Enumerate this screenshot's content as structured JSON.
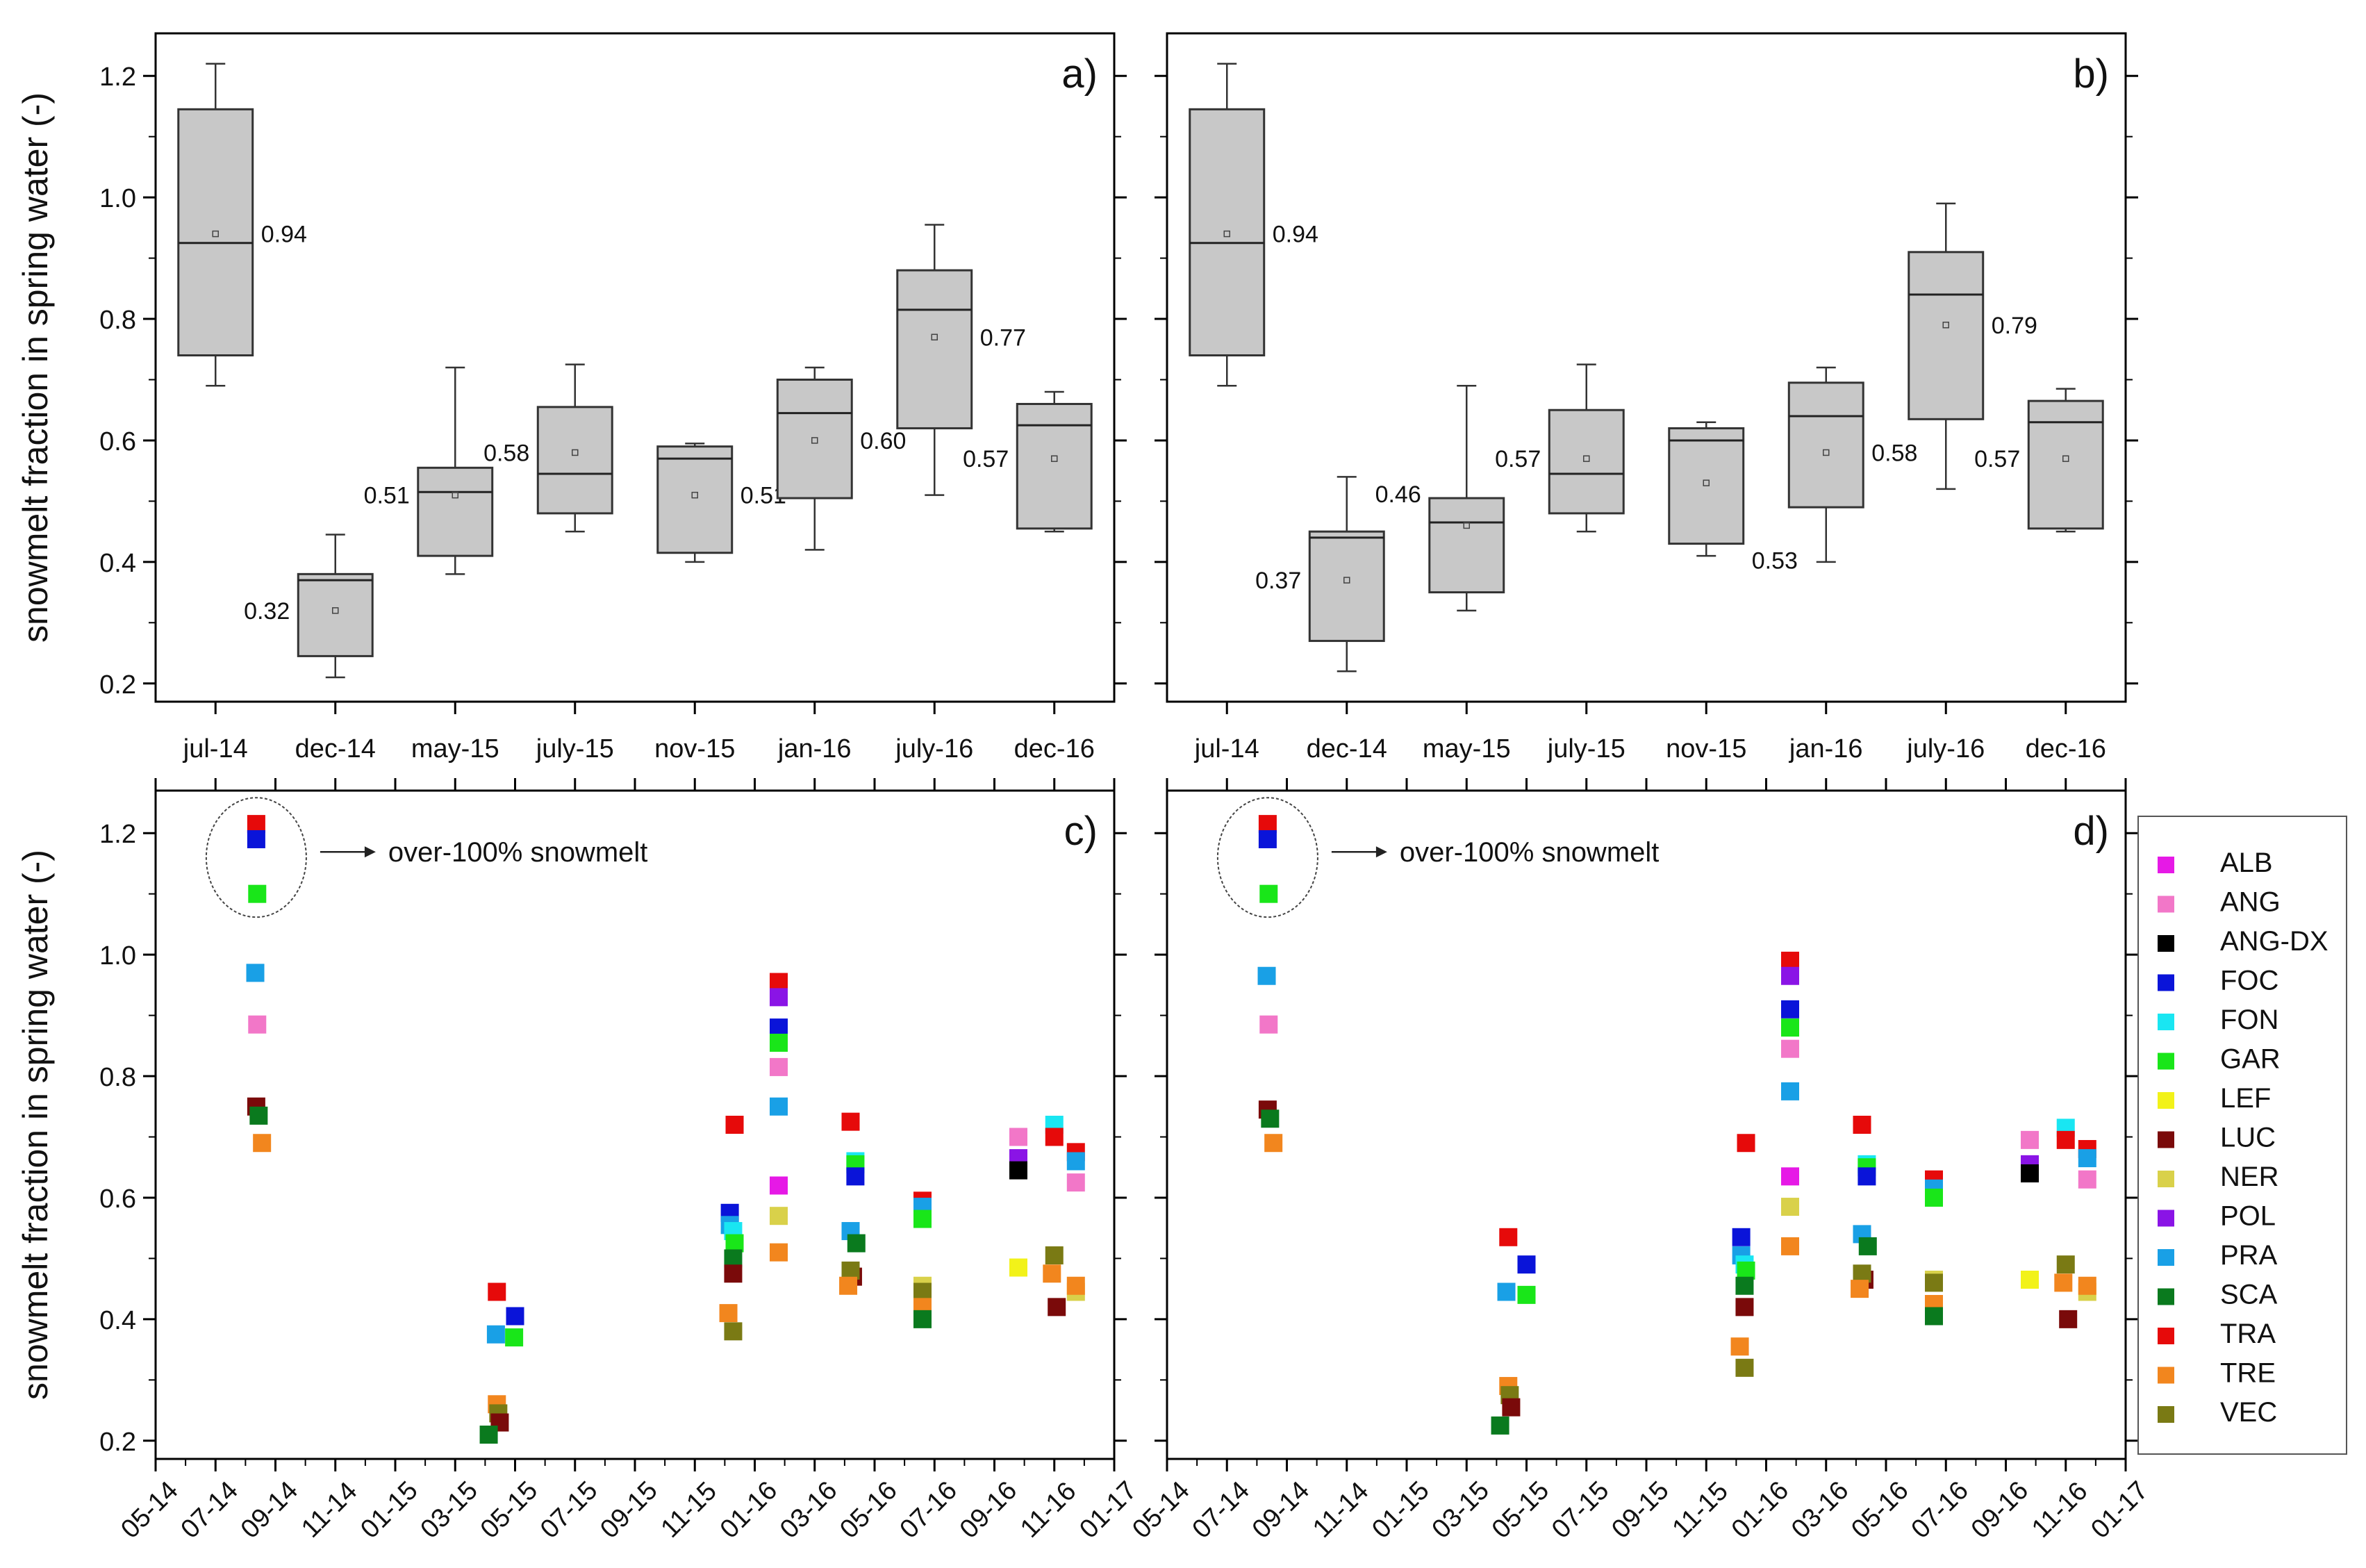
{
  "figure_description_ylabel": "snowmelt fraction in spring water (-)",
  "chart_data": [
    {
      "type": "box",
      "panel": "a)",
      "ylabel": "snowmelt fraction in spring water (-)",
      "ylim": [
        0.17,
        1.27
      ],
      "yticks": [
        0.2,
        0.4,
        0.6,
        0.8,
        1.0,
        1.2
      ],
      "ytick_labels": [
        "0.2",
        "0.4",
        "0.6",
        "0.8",
        "1.0",
        "1.2"
      ],
      "categories": [
        "jul-14",
        "dec-14",
        "may-15",
        "july-15",
        "nov-15",
        "jan-16",
        "july-16",
        "dec-16"
      ],
      "boxes": [
        {
          "whisker_low": 0.69,
          "q1": 0.74,
          "median": 0.925,
          "q3": 1.145,
          "whisker_high": 1.22,
          "mean": 0.94,
          "label": "0.94",
          "label_side": "right"
        },
        {
          "whisker_low": 0.21,
          "q1": 0.245,
          "median": 0.37,
          "q3": 0.38,
          "whisker_high": 0.445,
          "mean": 0.32,
          "label": "0.32",
          "label_side": "left"
        },
        {
          "whisker_low": 0.38,
          "q1": 0.41,
          "median": 0.515,
          "q3": 0.555,
          "whisker_high": 0.72,
          "mean": 0.51,
          "label": "0.51",
          "label_side": "left"
        },
        {
          "whisker_low": 0.45,
          "q1": 0.48,
          "median": 0.545,
          "q3": 0.655,
          "whisker_high": 0.725,
          "mean": 0.58,
          "label": "0.58",
          "label_side": "left"
        },
        {
          "whisker_low": 0.4,
          "q1": 0.415,
          "median": 0.57,
          "q3": 0.59,
          "whisker_high": 0.595,
          "mean": 0.51,
          "label": "0.51",
          "label_side": "right"
        },
        {
          "whisker_low": 0.42,
          "q1": 0.505,
          "median": 0.645,
          "q3": 0.7,
          "whisker_high": 0.72,
          "mean": 0.6,
          "label": "0.60",
          "label_side": "right"
        },
        {
          "whisker_low": 0.51,
          "q1": 0.62,
          "median": 0.815,
          "q3": 0.88,
          "whisker_high": 0.955,
          "mean": 0.77,
          "label": "0.77",
          "label_side": "right"
        },
        {
          "whisker_low": 0.45,
          "q1": 0.455,
          "median": 0.625,
          "q3": 0.66,
          "whisker_high": 0.68,
          "mean": 0.57,
          "label": "0.57",
          "label_side": "left"
        }
      ]
    },
    {
      "type": "box",
      "panel": "b)",
      "ylim": [
        0.17,
        1.27
      ],
      "categories": [
        "jul-14",
        "dec-14",
        "may-15",
        "july-15",
        "nov-15",
        "jan-16",
        "july-16",
        "dec-16"
      ],
      "boxes": [
        {
          "whisker_low": 0.69,
          "q1": 0.74,
          "median": 0.925,
          "q3": 1.145,
          "whisker_high": 1.22,
          "mean": 0.94,
          "label": "0.94",
          "label_side": "right"
        },
        {
          "whisker_low": 0.22,
          "q1": 0.27,
          "median": 0.44,
          "q3": 0.45,
          "whisker_high": 0.54,
          "mean": 0.37,
          "label": "0.37",
          "label_side": "left"
        },
        {
          "whisker_low": 0.32,
          "q1": 0.35,
          "median": 0.465,
          "q3": 0.505,
          "whisker_high": 0.69,
          "mean": 0.46,
          "label": "0.46",
          "label_side": "left-top"
        },
        {
          "whisker_low": 0.45,
          "q1": 0.48,
          "median": 0.545,
          "q3": 0.65,
          "whisker_high": 0.725,
          "mean": 0.57,
          "label": "0.57",
          "label_side": "left"
        },
        {
          "whisker_low": 0.41,
          "q1": 0.43,
          "median": 0.6,
          "q3": 0.62,
          "whisker_high": 0.63,
          "mean": 0.53,
          "label": "0.53",
          "label_side": "right-bottom"
        },
        {
          "whisker_low": 0.4,
          "q1": 0.49,
          "median": 0.64,
          "q3": 0.695,
          "whisker_high": 0.72,
          "mean": 0.58,
          "label": "0.58",
          "label_side": "right"
        },
        {
          "whisker_low": 0.52,
          "q1": 0.635,
          "median": 0.84,
          "q3": 0.91,
          "whisker_high": 0.99,
          "mean": 0.79,
          "label": "0.79",
          "label_side": "right"
        },
        {
          "whisker_low": 0.45,
          "q1": 0.455,
          "median": 0.63,
          "q3": 0.665,
          "whisker_high": 0.685,
          "mean": 0.57,
          "label": "0.57",
          "label_side": "left"
        }
      ]
    },
    {
      "type": "scatter",
      "panel": "c)",
      "ylabel": "snowmelt fraction in spring water (-)",
      "ylim": [
        0.17,
        1.27
      ],
      "xlim": [
        0,
        20
      ],
      "xtick_labels": [
        "05-14",
        "07-14",
        "09-14",
        "11-14",
        "01-15",
        "03-15",
        "05-15",
        "07-15",
        "09-15",
        "11-15",
        "01-16",
        "03-16",
        "05-16",
        "07-16",
        "09-16",
        "11-16",
        "01-17"
      ],
      "annotation": "over-100% snowmelt",
      "points": [
        {
          "s": "TRA",
          "x": 2.1,
          "y": 1.215
        },
        {
          "s": "FOC",
          "x": 2.1,
          "y": 1.19
        },
        {
          "s": "GAR",
          "x": 2.12,
          "y": 1.1
        },
        {
          "s": "PRA",
          "x": 2.08,
          "y": 0.97
        },
        {
          "s": "ANG",
          "x": 2.12,
          "y": 0.885
        },
        {
          "s": "LUC",
          "x": 2.1,
          "y": 0.75
        },
        {
          "s": "SCA",
          "x": 2.15,
          "y": 0.735
        },
        {
          "s": "TRE",
          "x": 2.22,
          "y": 0.69
        },
        {
          "s": "TRA",
          "x": 7.12,
          "y": 0.445
        },
        {
          "s": "FOC",
          "x": 7.5,
          "y": 0.405
        },
        {
          "s": "PRA",
          "x": 7.1,
          "y": 0.375
        },
        {
          "s": "GAR",
          "x": 7.48,
          "y": 0.37
        },
        {
          "s": "TRE",
          "x": 7.12,
          "y": 0.26
        },
        {
          "s": "VEC",
          "x": 7.15,
          "y": 0.245
        },
        {
          "s": "LUC",
          "x": 7.18,
          "y": 0.23
        },
        {
          "s": "SCA",
          "x": 6.95,
          "y": 0.21
        },
        {
          "s": "TRA",
          "x": 12.08,
          "y": 0.72
        },
        {
          "s": "FOC",
          "x": 11.98,
          "y": 0.575
        },
        {
          "s": "PRA",
          "x": 11.98,
          "y": 0.555
        },
        {
          "s": "FON",
          "x": 12.05,
          "y": 0.545
        },
        {
          "s": "GAR",
          "x": 12.08,
          "y": 0.525
        },
        {
          "s": "SCA",
          "x": 12.05,
          "y": 0.5
        },
        {
          "s": "LUC",
          "x": 12.05,
          "y": 0.475
        },
        {
          "s": "TRE",
          "x": 11.95,
          "y": 0.41
        },
        {
          "s": "VEC",
          "x": 12.05,
          "y": 0.38
        },
        {
          "s": "TRA",
          "x": 14.5,
          "y": 0.725
        },
        {
          "s": "FON",
          "x": 14.6,
          "y": 0.66
        },
        {
          "s": "GAR",
          "x": 14.6,
          "y": 0.655
        },
        {
          "s": "FOC",
          "x": 14.6,
          "y": 0.635
        },
        {
          "s": "PRA",
          "x": 14.5,
          "y": 0.545
        },
        {
          "s": "SCA",
          "x": 14.62,
          "y": 0.525
        },
        {
          "s": "LUC",
          "x": 14.55,
          "y": 0.47
        },
        {
          "s": "VEC",
          "x": 14.5,
          "y": 0.48
        },
        {
          "s": "TRE",
          "x": 14.45,
          "y": 0.455
        },
        {
          "s": "TRA",
          "x": 16.0,
          "y": 0.595
        },
        {
          "s": "PRA",
          "x": 16.0,
          "y": 0.585
        },
        {
          "s": "GAR",
          "x": 16.0,
          "y": 0.565
        },
        {
          "s": "NER",
          "x": 16.0,
          "y": 0.455
        },
        {
          "s": "VEC",
          "x": 16.0,
          "y": 0.445
        },
        {
          "s": "TRE",
          "x": 16.0,
          "y": 0.42
        },
        {
          "s": "SCA",
          "x": 16.0,
          "y": 0.4
        },
        {
          "s": "ANG",
          "x": 18.0,
          "y": 0.7
        },
        {
          "s": "POL",
          "x": 18.0,
          "y": 0.665
        },
        {
          "s": "ANG-DX",
          "x": 18.0,
          "y": 0.645
        },
        {
          "s": "FON",
          "x": 18.75,
          "y": 0.72
        },
        {
          "s": "TRA",
          "x": 18.75,
          "y": 0.7
        },
        {
          "s": "LEF",
          "x": 18.0,
          "y": 0.485
        },
        {
          "s": "VEC",
          "x": 18.75,
          "y": 0.505
        },
        {
          "s": "TRE",
          "x": 18.7,
          "y": 0.475
        },
        {
          "s": "LUC",
          "x": 18.8,
          "y": 0.42
        }
      ]
    },
    {
      "type": "scatter",
      "panel": "d)",
      "ylim": [
        0.17,
        1.27
      ],
      "xlim": [
        0,
        20
      ],
      "xtick_labels": [
        "05-14",
        "07-14",
        "09-14",
        "11-14",
        "01-15",
        "03-15",
        "05-15",
        "07-15",
        "09-15",
        "11-15",
        "01-16",
        "03-16",
        "05-16",
        "07-16",
        "09-16",
        "11-16",
        "01-17"
      ],
      "annotation": "over-100% snowmelt",
      "points": [
        {
          "s": "TRA",
          "x": 2.1,
          "y": 1.215
        },
        {
          "s": "FOC",
          "x": 2.1,
          "y": 1.19
        },
        {
          "s": "GAR",
          "x": 2.12,
          "y": 1.1
        },
        {
          "s": "PRA",
          "x": 2.08,
          "y": 0.965
        },
        {
          "s": "ANG",
          "x": 2.12,
          "y": 0.885
        },
        {
          "s": "LUC",
          "x": 2.1,
          "y": 0.745
        },
        {
          "s": "SCA",
          "x": 2.15,
          "y": 0.73
        },
        {
          "s": "TRE",
          "x": 2.22,
          "y": 0.69
        },
        {
          "s": "TRA",
          "x": 7.12,
          "y": 0.535
        },
        {
          "s": "FOC",
          "x": 7.5,
          "y": 0.49
        },
        {
          "s": "PRA",
          "x": 7.08,
          "y": 0.445
        },
        {
          "s": "GAR",
          "x": 7.5,
          "y": 0.44
        },
        {
          "s": "TRE",
          "x": 7.12,
          "y": 0.29
        },
        {
          "s": "VEC",
          "x": 7.15,
          "y": 0.275
        },
        {
          "s": "LUC",
          "x": 7.18,
          "y": 0.255
        },
        {
          "s": "SCA",
          "x": 6.95,
          "y": 0.225
        },
        {
          "s": "TRA",
          "x": 12.08,
          "y": 0.69
        },
        {
          "s": "FOC",
          "x": 11.98,
          "y": 0.535
        },
        {
          "s": "PRA",
          "x": 11.98,
          "y": 0.505
        },
        {
          "s": "FON",
          "x": 12.05,
          "y": 0.49
        },
        {
          "s": "GAR",
          "x": 12.08,
          "y": 0.48
        },
        {
          "s": "SCA",
          "x": 12.05,
          "y": 0.455
        },
        {
          "s": "LUC",
          "x": 12.05,
          "y": 0.42
        },
        {
          "s": "TRE",
          "x": 11.95,
          "y": 0.355
        },
        {
          "s": "VEC",
          "x": 12.05,
          "y": 0.32
        },
        {
          "s": "TRA",
          "x": 14.5,
          "y": 0.72
        },
        {
          "s": "FON",
          "x": 14.6,
          "y": 0.655
        },
        {
          "s": "GAR",
          "x": 14.6,
          "y": 0.65
        },
        {
          "s": "FOC",
          "x": 14.6,
          "y": 0.635
        },
        {
          "s": "PRA",
          "x": 14.5,
          "y": 0.54
        },
        {
          "s": "SCA",
          "x": 14.62,
          "y": 0.52
        },
        {
          "s": "LUC",
          "x": 14.55,
          "y": 0.465
        },
        {
          "s": "VEC",
          "x": 14.5,
          "y": 0.475
        },
        {
          "s": "TRE",
          "x": 14.45,
          "y": 0.45
        },
        {
          "s": "TRA",
          "x": 16.0,
          "y": 0.63
        },
        {
          "s": "PRA",
          "x": 16.0,
          "y": 0.615
        },
        {
          "s": "GAR",
          "x": 16.0,
          "y": 0.6
        },
        {
          "s": "NER",
          "x": 16.0,
          "y": 0.465
        },
        {
          "s": "VEC",
          "x": 16.0,
          "y": 0.46
        },
        {
          "s": "TRE",
          "x": 16.0,
          "y": 0.425
        },
        {
          "s": "SCA",
          "x": 16.0,
          "y": 0.405
        },
        {
          "s": "ANG",
          "x": 18.0,
          "y": 0.695
        },
        {
          "s": "POL",
          "x": 18.0,
          "y": 0.655
        },
        {
          "s": "ANG-DX",
          "x": 18.0,
          "y": 0.64
        },
        {
          "s": "FON",
          "x": 18.75,
          "y": 0.715
        },
        {
          "s": "TRA",
          "x": 18.75,
          "y": 0.695
        },
        {
          "s": "LEF",
          "x": 18.0,
          "y": 0.465
        },
        {
          "s": "VEC",
          "x": 18.75,
          "y": 0.49
        },
        {
          "s": "TRE",
          "x": 18.7,
          "y": 0.46
        },
        {
          "s": "LUC",
          "x": 18.8,
          "y": 0.4
        }
      ]
    }
  ],
  "jul16_points": [
    {
      "s": "TRA",
      "c": 0.955,
      "d": 0.99
    },
    {
      "s": "POL",
      "c": 0.93,
      "d": 0.965
    },
    {
      "s": "FOC",
      "c": 0.88,
      "d": 0.91
    },
    {
      "s": "GAR",
      "c": 0.855,
      "d": 0.88
    },
    {
      "s": "ANG",
      "c": 0.815,
      "d": 0.845
    },
    {
      "s": "PRA",
      "c": 0.75,
      "d": 0.775
    },
    {
      "s": "ALB",
      "c": 0.62,
      "d": 0.635
    },
    {
      "s": "NER",
      "c": 0.57,
      "d": 0.585
    },
    {
      "s": "TRE",
      "c": 0.51,
      "d": 0.52
    }
  ],
  "dec16_points": [
    {
      "s": "TRA",
      "c": 0.675,
      "d": 0.68
    },
    {
      "s": "PRA",
      "c": 0.66,
      "d": 0.665
    },
    {
      "s": "ANG",
      "c": 0.625,
      "d": 0.63
    },
    {
      "s": "NER",
      "c": 0.445,
      "d": 0.445
    },
    {
      "s": "TRE",
      "c": 0.455,
      "d": 0.455
    }
  ],
  "legend": {
    "entries": [
      {
        "label": "ALB",
        "color": "#e619e6"
      },
      {
        "label": "ANG",
        "color": "#f277c8"
      },
      {
        "label": "ANG-DX",
        "color": "#000000"
      },
      {
        "label": "FOC",
        "color": "#0a14d9"
      },
      {
        "label": "FON",
        "color": "#19e6f2"
      },
      {
        "label": "GAR",
        "color": "#19e619"
      },
      {
        "label": "LEF",
        "color": "#f2f219"
      },
      {
        "label": "LUC",
        "color": "#7a0a0a"
      },
      {
        "label": "NER",
        "color": "#d9d14a"
      },
      {
        "label": "POL",
        "color": "#8a14e6"
      },
      {
        "label": "PRA",
        "color": "#19a0e6"
      },
      {
        "label": "SCA",
        "color": "#0a7a1e"
      },
      {
        "label": "TRA",
        "color": "#e60a0a"
      },
      {
        "label": "TRE",
        "color": "#f2861e"
      },
      {
        "label": "VEC",
        "color": "#7a7a14"
      }
    ]
  },
  "colors": {
    "box_fill": "#c8c8c8",
    "box_stroke": "#333333",
    "frame": "#000000"
  }
}
